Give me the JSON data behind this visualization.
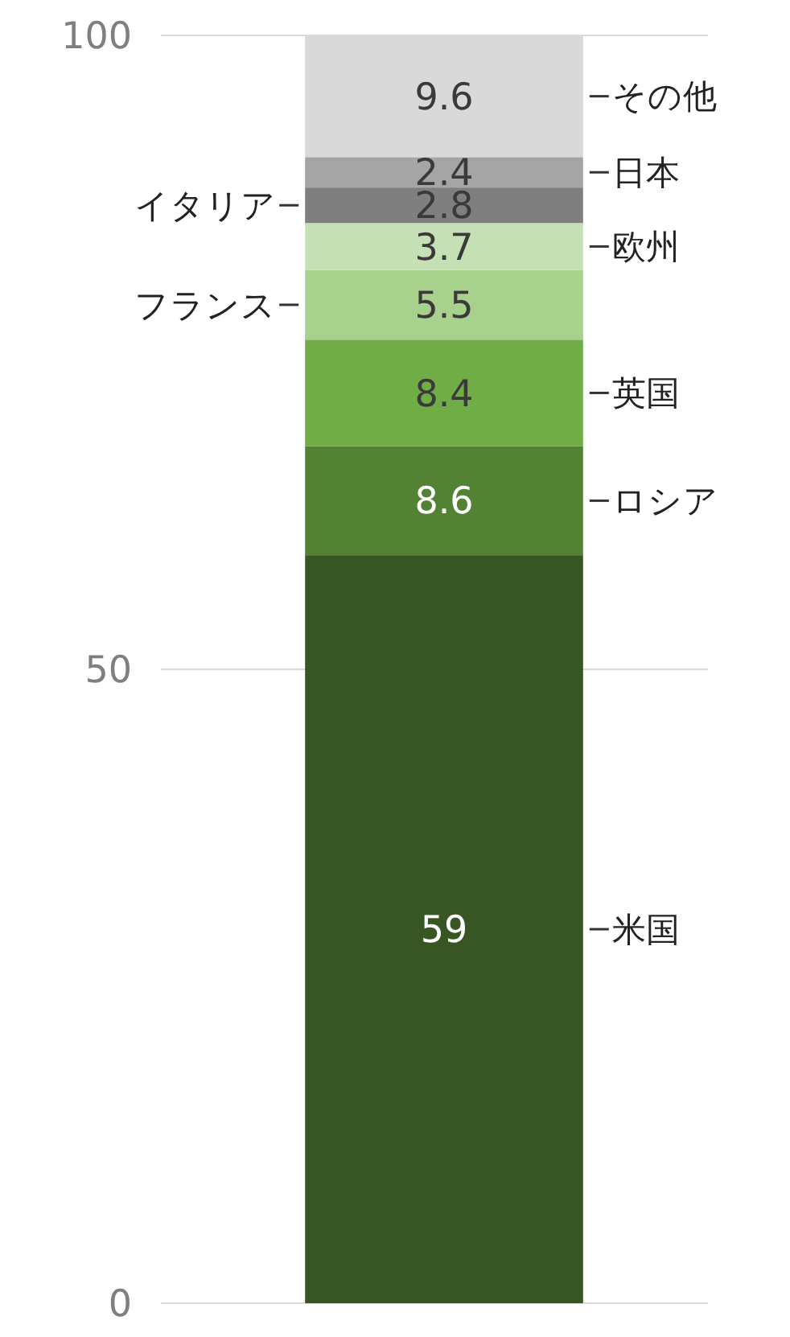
{
  "chart_data": {
    "type": "bar",
    "stacked": true,
    "categories": [
      null
    ],
    "ylim": [
      0,
      100
    ],
    "yticks": [
      0,
      50,
      100
    ],
    "grid": "y",
    "data_labels": true,
    "series": [
      {
        "name": "米国",
        "color": "#375623",
        "values": [
          59
        ]
      },
      {
        "name": "ロシア",
        "color": "#548235",
        "values": [
          8.6
        ]
      },
      {
        "name": "英国",
        "color": "#70ad47",
        "values": [
          8.4
        ]
      },
      {
        "name": "フランス",
        "color": "#a9d18e",
        "values": [
          5.5
        ]
      },
      {
        "name": "欧州",
        "color": "#c5e0b4",
        "values": [
          3.7
        ]
      },
      {
        "name": "イタリア",
        "color": "#7f7f7f",
        "values": [
          2.8
        ]
      },
      {
        "name": "日本",
        "color": "#a5a5a5",
        "values": [
          2.4
        ]
      },
      {
        "name": "その他",
        "color": "#d9d9d9",
        "values": [
          9.6
        ]
      }
    ]
  }
}
